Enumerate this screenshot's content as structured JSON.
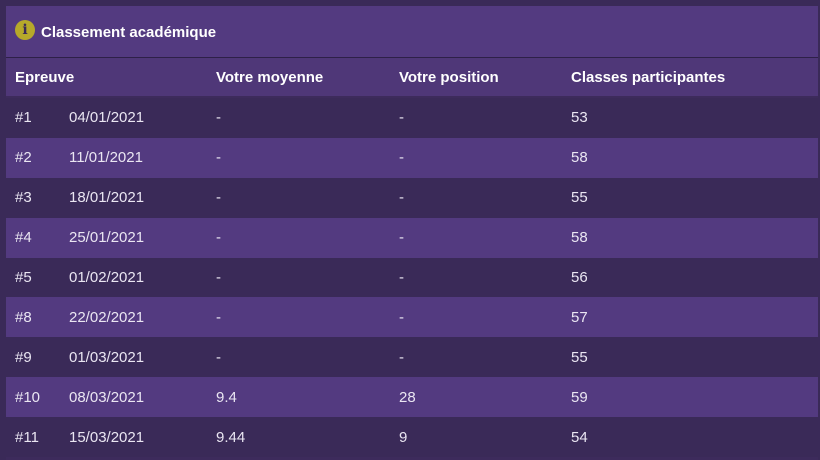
{
  "panel": {
    "icon": "info-icon",
    "title": "Classement académique"
  },
  "table": {
    "headers": {
      "epreuve": "Epreuve",
      "moyenne": "Votre moyenne",
      "position": "Votre position",
      "classes": "Classes participantes"
    },
    "rows": [
      {
        "num": "#1",
        "date": "04/01/2021",
        "moyenne": "-",
        "position": "-",
        "classes": "53"
      },
      {
        "num": "#2",
        "date": "11/01/2021",
        "moyenne": "-",
        "position": "-",
        "classes": "58"
      },
      {
        "num": "#3",
        "date": "18/01/2021",
        "moyenne": "-",
        "position": "-",
        "classes": "55"
      },
      {
        "num": "#4",
        "date": "25/01/2021",
        "moyenne": "-",
        "position": "-",
        "classes": "58"
      },
      {
        "num": "#5",
        "date": "01/02/2021",
        "moyenne": "-",
        "position": "-",
        "classes": "56"
      },
      {
        "num": "#8",
        "date": "22/02/2021",
        "moyenne": "-",
        "position": "-",
        "classes": "57"
      },
      {
        "num": "#9",
        "date": "01/03/2021",
        "moyenne": "-",
        "position": "-",
        "classes": "55"
      },
      {
        "num": "#10",
        "date": "08/03/2021",
        "moyenne": "9.4",
        "position": "28",
        "classes": "59"
      },
      {
        "num": "#11",
        "date": "15/03/2021",
        "moyenne": "9.44",
        "position": "9",
        "classes": "54"
      }
    ]
  }
}
